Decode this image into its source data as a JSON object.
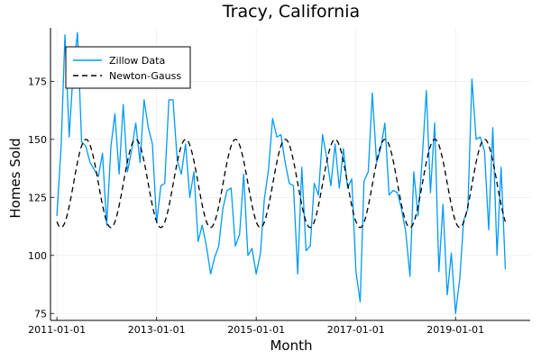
{
  "chart_data": {
    "type": "line",
    "title": "Tracy, California",
    "xlabel": "Month",
    "ylabel": "Homes Sold",
    "x_axis_type": "date",
    "xlim": [
      "2010-11-15",
      "2020-07-01"
    ],
    "ylim": [
      72,
      198
    ],
    "x_ticks": [
      "2011-01-01",
      "2013-01-01",
      "2015-01-01",
      "2017-01-01",
      "2019-01-01"
    ],
    "y_ticks": [
      75,
      100,
      125,
      150,
      175
    ],
    "grid": true,
    "legend_position": "top-left",
    "series": [
      {
        "name": "Zillow Data",
        "color": "#009af9",
        "style": "solid",
        "points": [
          [
            "2011-01-01",
            117
          ],
          [
            "2011-02-01",
            147
          ],
          [
            "2011-03-01",
            195
          ],
          [
            "2011-04-01",
            151
          ],
          [
            "2011-05-01",
            180
          ],
          [
            "2011-06-01",
            196
          ],
          [
            "2011-07-01",
            149
          ],
          [
            "2011-08-01",
            147
          ],
          [
            "2011-09-01",
            140
          ],
          [
            "2011-10-01",
            137
          ],
          [
            "2011-11-01",
            134
          ],
          [
            "2011-12-01",
            144
          ],
          [
            "2012-01-01",
            113
          ],
          [
            "2012-02-01",
            147
          ],
          [
            "2012-03-01",
            161
          ],
          [
            "2012-04-01",
            135
          ],
          [
            "2012-05-01",
            165
          ],
          [
            "2012-06-01",
            136
          ],
          [
            "2012-07-01",
            145
          ],
          [
            "2012-08-01",
            157
          ],
          [
            "2012-09-01",
            140
          ],
          [
            "2012-10-01",
            167
          ],
          [
            "2012-11-01",
            155
          ],
          [
            "2012-12-01",
            148
          ],
          [
            "2013-01-01",
            114
          ],
          [
            "2013-02-01",
            130
          ],
          [
            "2013-03-01",
            131
          ],
          [
            "2013-04-01",
            167
          ],
          [
            "2013-05-01",
            167
          ],
          [
            "2013-06-01",
            141
          ],
          [
            "2013-07-01",
            135
          ],
          [
            "2013-08-01",
            148
          ],
          [
            "2013-09-01",
            125
          ],
          [
            "2013-10-01",
            136
          ],
          [
            "2013-11-01",
            106
          ],
          [
            "2013-12-01",
            113
          ],
          [
            "2014-01-01",
            104
          ],
          [
            "2014-02-01",
            92
          ],
          [
            "2014-03-01",
            99
          ],
          [
            "2014-04-01",
            104
          ],
          [
            "2014-05-01",
            120
          ],
          [
            "2014-06-01",
            128
          ],
          [
            "2014-07-01",
            129
          ],
          [
            "2014-08-01",
            104
          ],
          [
            "2014-09-01",
            109
          ],
          [
            "2014-10-01",
            135
          ],
          [
            "2014-11-01",
            100
          ],
          [
            "2014-12-01",
            103
          ],
          [
            "2015-01-01",
            92
          ],
          [
            "2015-02-01",
            101
          ],
          [
            "2015-03-01",
            124
          ],
          [
            "2015-04-01",
            137
          ],
          [
            "2015-05-01",
            159
          ],
          [
            "2015-06-01",
            151
          ],
          [
            "2015-07-01",
            152
          ],
          [
            "2015-08-01",
            140
          ],
          [
            "2015-09-01",
            131
          ],
          [
            "2015-10-01",
            130
          ],
          [
            "2015-11-01",
            92
          ],
          [
            "2015-12-01",
            138
          ],
          [
            "2016-01-01",
            102
          ],
          [
            "2016-02-01",
            104
          ],
          [
            "2016-03-01",
            131
          ],
          [
            "2016-04-01",
            126
          ],
          [
            "2016-05-01",
            152
          ],
          [
            "2016-06-01",
            142
          ],
          [
            "2016-07-01",
            130
          ],
          [
            "2016-08-01",
            148
          ],
          [
            "2016-09-01",
            129
          ],
          [
            "2016-10-01",
            146
          ],
          [
            "2016-11-01",
            129
          ],
          [
            "2016-12-01",
            133
          ],
          [
            "2017-01-01",
            93
          ],
          [
            "2017-02-01",
            80
          ],
          [
            "2017-03-01",
            132
          ],
          [
            "2017-04-01",
            136
          ],
          [
            "2017-05-01",
            170
          ],
          [
            "2017-06-01",
            140
          ],
          [
            "2017-07-01",
            146
          ],
          [
            "2017-08-01",
            157
          ],
          [
            "2017-09-01",
            126
          ],
          [
            "2017-10-01",
            128
          ],
          [
            "2017-11-01",
            127
          ],
          [
            "2017-12-01",
            120
          ],
          [
            "2018-01-01",
            110
          ],
          [
            "2018-02-01",
            91
          ],
          [
            "2018-03-01",
            136
          ],
          [
            "2018-04-01",
            117
          ],
          [
            "2018-05-01",
            141
          ],
          [
            "2018-06-01",
            171
          ],
          [
            "2018-07-01",
            127
          ],
          [
            "2018-08-01",
            157
          ],
          [
            "2018-09-01",
            93
          ],
          [
            "2018-10-01",
            122
          ],
          [
            "2018-11-01",
            83
          ],
          [
            "2018-12-01",
            101
          ],
          [
            "2019-01-01",
            75
          ],
          [
            "2019-02-01",
            90
          ],
          [
            "2019-03-01",
            115
          ],
          [
            "2019-04-01",
            120
          ],
          [
            "2019-05-01",
            176
          ],
          [
            "2019-06-01",
            150
          ],
          [
            "2019-07-01",
            151
          ],
          [
            "2019-08-01",
            145
          ],
          [
            "2019-09-01",
            111
          ],
          [
            "2019-10-01",
            155
          ],
          [
            "2019-11-01",
            100
          ],
          [
            "2019-12-01",
            138
          ],
          [
            "2020-01-01",
            94
          ]
        ]
      },
      {
        "name": "Newton-Gauss",
        "color": "#000000",
        "style": "dashed",
        "model": "sinusoid",
        "mean": 131,
        "amplitude": 19,
        "period_months": 12,
        "peak_month": 7,
        "x_start": "2011-01-01",
        "x_end": "2020-01-01"
      }
    ]
  }
}
